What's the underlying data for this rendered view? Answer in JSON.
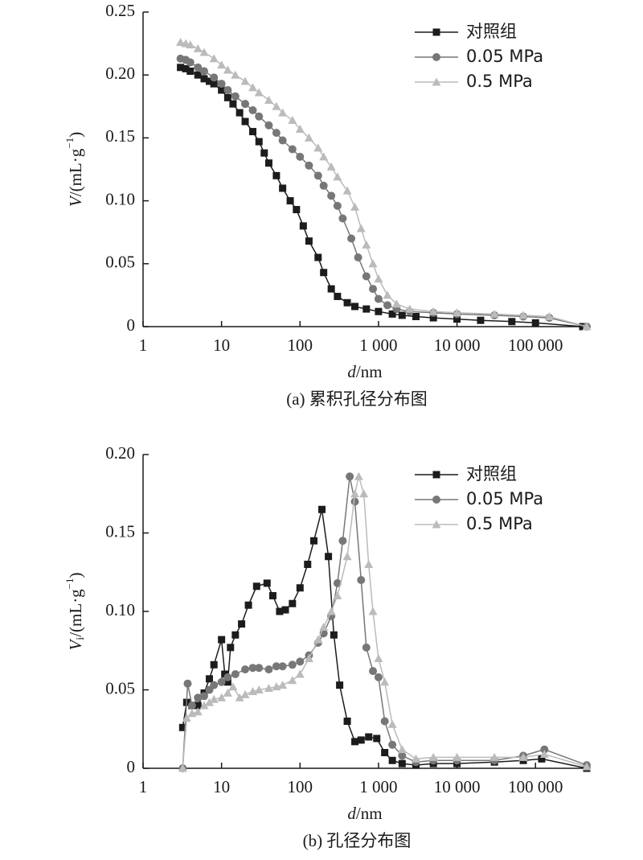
{
  "chart_data": [
    {
      "type": "line",
      "caption": "(a) 累积孔径分布图",
      "x_label": {
        "var": "d",
        "unit": "/nm"
      },
      "y_label": {
        "var": "V",
        "sub": "",
        "unit": "/(mL·g",
        "exp": "−1",
        "close": ")"
      },
      "log_x": true,
      "legend": "upper right",
      "xlim": [
        1,
        450000
      ],
      "xticks": [
        1,
        10,
        100,
        {
          "value": 1000,
          "label": "1 000"
        },
        {
          "value": 10000,
          "label": "10 000"
        },
        {
          "value": 100000,
          "label": "100 000"
        }
      ],
      "ylim": [
        0,
        0.25
      ],
      "yticks": [
        0,
        0.05,
        {
          "value": 0.1,
          "label": "0.10"
        },
        0.15,
        {
          "value": 0.2,
          "label": "0.20"
        },
        0.25
      ],
      "series": [
        {
          "name": "对照组",
          "color": "#1c1c1c",
          "marker": "square",
          "x": [
            3,
            3.5,
            4,
            5,
            6,
            7,
            8,
            10,
            12,
            14,
            17,
            20,
            25,
            30,
            35,
            40,
            50,
            60,
            75,
            90,
            110,
            130,
            170,
            200,
            250,
            300,
            400,
            500,
            700,
            1000,
            1500,
            2000,
            3000,
            5000,
            10000,
            20000,
            50000,
            100000,
            400000
          ],
          "values": [
            0.206,
            0.205,
            0.203,
            0.2,
            0.197,
            0.195,
            0.193,
            0.188,
            0.182,
            0.177,
            0.17,
            0.163,
            0.155,
            0.147,
            0.138,
            0.13,
            0.12,
            0.11,
            0.1,
            0.093,
            0.08,
            0.068,
            0.055,
            0.043,
            0.03,
            0.024,
            0.019,
            0.016,
            0.014,
            0.012,
            0.01,
            0.009,
            0.008,
            0.007,
            0.006,
            0.005,
            0.004,
            0.003,
            0
          ]
        },
        {
          "name": "0.05 MPa",
          "color": "#777777",
          "marker": "circle",
          "x": [
            3,
            3.5,
            4,
            5,
            6,
            8,
            10,
            12,
            15,
            20,
            25,
            30,
            40,
            50,
            60,
            80,
            100,
            130,
            170,
            200,
            250,
            300,
            350,
            450,
            550,
            700,
            850,
            1000,
            1300,
            1700,
            2500,
            5000,
            10000,
            30000,
            70000,
            150000,
            450000
          ],
          "values": [
            0.213,
            0.212,
            0.21,
            0.206,
            0.203,
            0.198,
            0.193,
            0.188,
            0.183,
            0.177,
            0.172,
            0.167,
            0.16,
            0.154,
            0.148,
            0.141,
            0.135,
            0.128,
            0.12,
            0.112,
            0.104,
            0.096,
            0.086,
            0.07,
            0.055,
            0.04,
            0.03,
            0.022,
            0.017,
            0.014,
            0.012,
            0.011,
            0.01,
            0.009,
            0.008,
            0.007,
            0
          ]
        },
        {
          "name": "0.5 MPa",
          "color": "#bbbbbb",
          "marker": "triangle",
          "x": [
            3,
            3.5,
            4,
            5,
            6,
            8,
            10,
            12,
            15,
            20,
            25,
            30,
            40,
            50,
            60,
            80,
            100,
            130,
            170,
            200,
            250,
            300,
            400,
            500,
            600,
            700,
            850,
            1000,
            1300,
            1700,
            2500,
            5000,
            10000,
            30000,
            70000,
            150000,
            450000
          ],
          "values": [
            0.226,
            0.225,
            0.224,
            0.221,
            0.218,
            0.213,
            0.208,
            0.204,
            0.2,
            0.195,
            0.19,
            0.186,
            0.18,
            0.175,
            0.17,
            0.164,
            0.157,
            0.15,
            0.142,
            0.135,
            0.127,
            0.119,
            0.108,
            0.095,
            0.078,
            0.065,
            0.05,
            0.038,
            0.025,
            0.018,
            0.014,
            0.012,
            0.011,
            0.01,
            0.009,
            0.008,
            0
          ]
        }
      ]
    },
    {
      "type": "line",
      "caption": "(b) 孔径分布图",
      "x_label": {
        "var": "d",
        "unit": "/nm"
      },
      "y_label": {
        "var": "V",
        "sub": "i",
        "unit": "/(mL·g",
        "exp": "−1",
        "close": ")"
      },
      "log_x": true,
      "legend": "upper right",
      "xlim": [
        1,
        450000
      ],
      "xticks": [
        1,
        10,
        100,
        {
          "value": 1000,
          "label": "1 000"
        },
        {
          "value": 10000,
          "label": "10 000"
        },
        {
          "value": 100000,
          "label": "100 000"
        }
      ],
      "ylim": [
        0,
        0.2
      ],
      "yticks": [
        0,
        0.05,
        {
          "value": 0.1,
          "label": "0.10"
        },
        0.15,
        {
          "value": 0.2,
          "label": "0.20"
        }
      ],
      "series": [
        {
          "name": "对照组",
          "color": "#1c1c1c",
          "marker": "square",
          "x": [
            3.2,
            3.6,
            4.2,
            5,
            6,
            7,
            8,
            10,
            11,
            12,
            13,
            15,
            18,
            22,
            28,
            38,
            45,
            55,
            65,
            80,
            100,
            125,
            150,
            190,
            230,
            270,
            320,
            400,
            500,
            600,
            750,
            950,
            1200,
            1500,
            2000,
            3000,
            5000,
            10000,
            30000,
            70000,
            120000,
            450000
          ],
          "values": [
            0.026,
            0.042,
            0.04,
            0.04,
            0.048,
            0.057,
            0.066,
            0.082,
            0.06,
            0.055,
            0.077,
            0.085,
            0.092,
            0.104,
            0.116,
            0.118,
            0.11,
            0.1,
            0.101,
            0.105,
            0.115,
            0.13,
            0.145,
            0.165,
            0.135,
            0.085,
            0.053,
            0.03,
            0.017,
            0.018,
            0.02,
            0.019,
            0.01,
            0.005,
            0.003,
            0.002,
            0.003,
            0.003,
            0.004,
            0.005,
            0.006,
            0
          ]
        },
        {
          "name": "0.05 MPa",
          "color": "#777777",
          "marker": "circle",
          "x": [
            3.2,
            3.7,
            4.2,
            5,
            6,
            7,
            8,
            10,
            12,
            15,
            20,
            25,
            30,
            40,
            50,
            60,
            80,
            100,
            130,
            170,
            200,
            250,
            300,
            350,
            430,
            500,
            600,
            700,
            850,
            1000,
            1200,
            1500,
            2000,
            3000,
            5000,
            10000,
            30000,
            70000,
            130000,
            450000
          ],
          "values": [
            0,
            0.054,
            0.04,
            0.045,
            0.046,
            0.05,
            0.053,
            0.055,
            0.058,
            0.06,
            0.063,
            0.064,
            0.064,
            0.063,
            0.065,
            0.065,
            0.066,
            0.068,
            0.072,
            0.08,
            0.086,
            0.097,
            0.118,
            0.145,
            0.186,
            0.17,
            0.12,
            0.077,
            0.062,
            0.058,
            0.03,
            0.015,
            0.008,
            0.004,
            0.005,
            0.005,
            0.005,
            0.008,
            0.012,
            0.002
          ]
        },
        {
          "name": "0.5 MPa",
          "color": "#bbbbbb",
          "marker": "triangle",
          "x": [
            3.2,
            3.6,
            4.2,
            5,
            6,
            7,
            8,
            10,
            12,
            14,
            17,
            20,
            25,
            30,
            40,
            50,
            60,
            80,
            100,
            130,
            170,
            200,
            250,
            300,
            400,
            500,
            560,
            650,
            750,
            850,
            1000,
            1200,
            1500,
            2000,
            3000,
            5000,
            10000,
            30000,
            70000,
            130000,
            450000
          ],
          "values": [
            0,
            0.032,
            0.035,
            0.036,
            0.04,
            0.042,
            0.044,
            0.045,
            0.048,
            0.052,
            0.045,
            0.047,
            0.049,
            0.05,
            0.051,
            0.052,
            0.053,
            0.056,
            0.06,
            0.07,
            0.082,
            0.09,
            0.1,
            0.11,
            0.135,
            0.175,
            0.186,
            0.175,
            0.13,
            0.1,
            0.07,
            0.055,
            0.028,
            0.012,
            0.006,
            0.007,
            0.007,
            0.007,
            0.007,
            0.009,
            0.001
          ]
        }
      ]
    }
  ]
}
